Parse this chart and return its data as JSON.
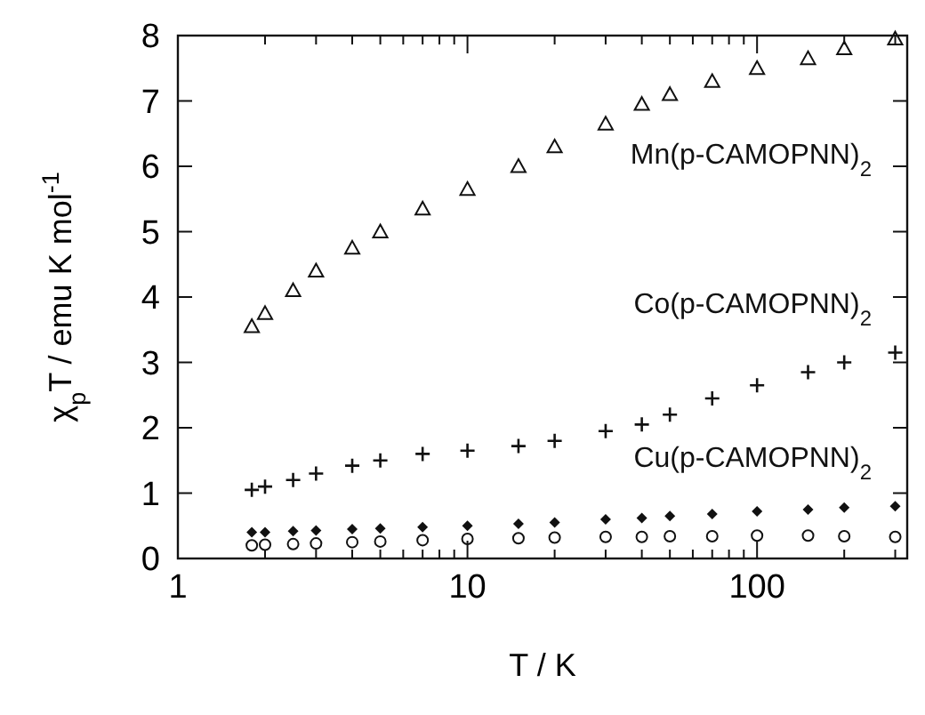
{
  "chart_data": {
    "type": "scatter",
    "xlabel": "T / K",
    "ylabel": "χ$_{p}$T / emu K mol$^{-1}$",
    "log": "x",
    "xlim": [
      1,
      330
    ],
    "ylim": [
      0,
      8
    ],
    "xticks": [
      1,
      {
        "value": 2,
        "label": null
      },
      {
        "value": 3,
        "label": null
      },
      {
        "value": 4,
        "label": null
      },
      {
        "value": 5,
        "label": null
      },
      {
        "value": 6,
        "label": null
      },
      {
        "value": 7,
        "label": null
      },
      {
        "value": 8,
        "label": null
      },
      {
        "value": 9,
        "label": null
      },
      10,
      {
        "value": 20,
        "label": null
      },
      {
        "value": 30,
        "label": null
      },
      {
        "value": 40,
        "label": null
      },
      {
        "value": 50,
        "label": null
      },
      {
        "value": 60,
        "label": null
      },
      {
        "value": 70,
        "label": null
      },
      {
        "value": 80,
        "label": null
      },
      {
        "value": 90,
        "label": null
      },
      100,
      {
        "value": 200,
        "label": null
      },
      {
        "value": 300,
        "label": null
      }
    ],
    "yticks": [
      0,
      1,
      2,
      3,
      4,
      5,
      6,
      7,
      8
    ],
    "grid": false,
    "legend": "right",
    "series": [
      {
        "name": "Mn(p-CAMOPNN)$_{2}$",
        "color": "#111111",
        "marker": "triangle",
        "x": [
          1.8,
          2,
          2.5,
          3,
          4,
          5,
          7,
          10,
          15,
          20,
          30,
          40,
          50,
          70,
          100,
          150,
          200,
          300
        ],
        "values": [
          3.55,
          3.75,
          4.1,
          4.4,
          4.75,
          5.0,
          5.35,
          5.65,
          6.0,
          6.3,
          6.65,
          6.95,
          7.1,
          7.3,
          7.5,
          7.65,
          7.8,
          7.95
        ]
      },
      {
        "name": "Co(p-CAMOPNN)$_{2}$",
        "color": "#111111",
        "marker": "cross",
        "x": [
          1.8,
          2,
          2.5,
          3,
          4,
          5,
          7,
          10,
          15,
          20,
          30,
          40,
          50,
          70,
          100,
          150,
          200,
          300
        ],
        "values": [
          1.05,
          1.1,
          1.2,
          1.3,
          1.42,
          1.5,
          1.6,
          1.65,
          1.72,
          1.8,
          1.95,
          2.05,
          2.2,
          2.45,
          2.65,
          2.85,
          3.0,
          3.15
        ]
      },
      {
        "name": "Cu(p-CAMOPNN)$_{2}$",
        "color": "#111111",
        "marker": "diamond",
        "x": [
          1.8,
          2,
          2.5,
          3,
          4,
          5,
          7,
          10,
          15,
          20,
          30,
          40,
          50,
          70,
          100,
          150,
          200,
          300
        ],
        "values": [
          0.4,
          0.4,
          0.42,
          0.43,
          0.45,
          0.46,
          0.48,
          0.5,
          0.53,
          0.55,
          0.6,
          0.62,
          0.65,
          0.68,
          0.72,
          0.75,
          0.78,
          0.8
        ]
      },
      {
        "color": "#111111",
        "marker": "circle",
        "x": [
          1.8,
          2,
          2.5,
          3,
          4,
          5,
          7,
          10,
          15,
          20,
          30,
          40,
          50,
          70,
          100,
          150,
          200,
          300
        ],
        "values": [
          0.2,
          0.21,
          0.22,
          0.23,
          0.25,
          0.26,
          0.28,
          0.3,
          0.31,
          0.32,
          0.33,
          0.33,
          0.34,
          0.34,
          0.35,
          0.35,
          0.34,
          0.33
        ]
      }
    ]
  }
}
